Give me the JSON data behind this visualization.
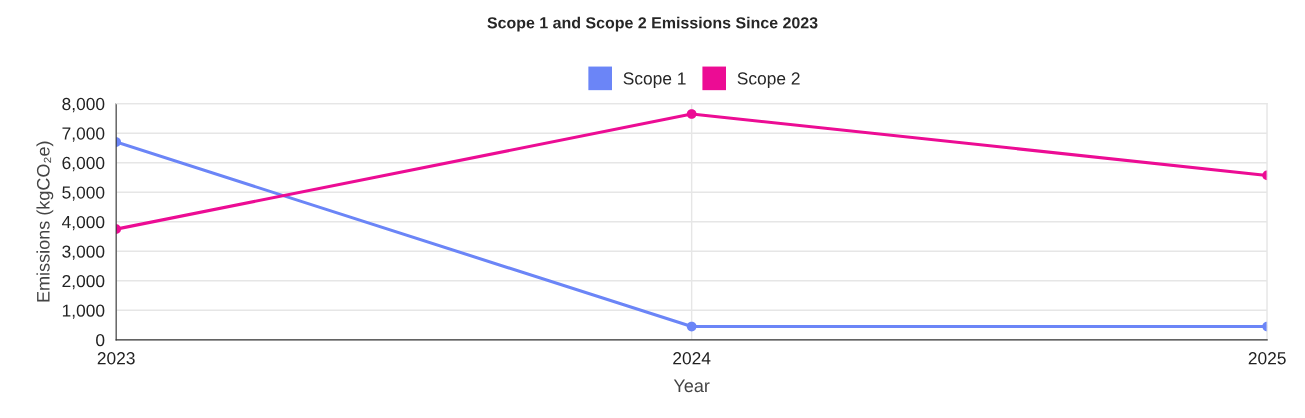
{
  "chart_data": {
    "type": "line",
    "title": "Scope 1 and Scope 2 Emissions Since 2023",
    "xlabel": "Year",
    "ylabel": "Emissions (kgCO₂e)",
    "categories": [
      "2023",
      "2024",
      "2025"
    ],
    "series": [
      {
        "name": "Scope 1",
        "color": "#6b85f7",
        "values": [
          6700,
          450,
          450
        ]
      },
      {
        "name": "Scope 2",
        "color": "#ec0c94",
        "values": [
          3750,
          7650,
          5570
        ]
      }
    ],
    "ylim": [
      0,
      8000
    ],
    "yticks": [
      {
        "value": 0,
        "label": "0"
      },
      {
        "value": 1000,
        "label": "1,000"
      },
      {
        "value": 2000,
        "label": "2,000"
      },
      {
        "value": 3000,
        "label": "3,000"
      },
      {
        "value": 4000,
        "label": "4,000"
      },
      {
        "value": 5000,
        "label": "5,000"
      },
      {
        "value": 6000,
        "label": "6,000"
      },
      {
        "value": 7000,
        "label": "7,000"
      },
      {
        "value": 8000,
        "label": "8,000"
      }
    ],
    "grid": true,
    "legend": "top",
    "marker": "circle",
    "line_style": "solid"
  }
}
